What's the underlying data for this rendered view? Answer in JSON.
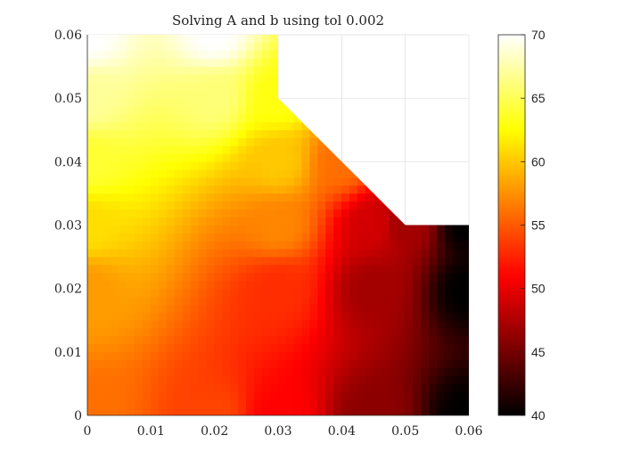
{
  "chart_data": {
    "type": "heatmap",
    "title": "Solving A and b using tol 0.002",
    "xlabel": "",
    "ylabel": "",
    "xlim": [
      0,
      0.06
    ],
    "ylim": [
      0,
      0.06
    ],
    "x_ticks": [
      "0",
      "0.01",
      "0.02",
      "0.03",
      "0.04",
      "0.05",
      "0.06"
    ],
    "y_ticks": [
      "0",
      "0.01",
      "0.02",
      "0.03",
      "0.04",
      "0.05",
      "0.06"
    ],
    "grid": true,
    "colormap": "hot",
    "colorbar": {
      "range": [
        40,
        70
      ],
      "ticks": [
        "40",
        "45",
        "50",
        "55",
        "60",
        "65",
        "70"
      ]
    },
    "domain_polygon": [
      [
        0,
        0
      ],
      [
        0.06,
        0
      ],
      [
        0.06,
        0.03
      ],
      [
        0.05,
        0.03
      ],
      [
        0.03,
        0.05
      ],
      [
        0.03,
        0.06
      ],
      [
        0,
        0.06
      ]
    ],
    "field_samples": [
      {
        "x": 0.0,
        "y": 0.06,
        "value": 70
      },
      {
        "x": 0.02,
        "y": 0.06,
        "value": 70
      },
      {
        "x": 0.0,
        "y": 0.05,
        "value": 67
      },
      {
        "x": 0.02,
        "y": 0.05,
        "value": 66
      },
      {
        "x": 0.03,
        "y": 0.05,
        "value": 63
      },
      {
        "x": 0.0,
        "y": 0.04,
        "value": 64
      },
      {
        "x": 0.03,
        "y": 0.04,
        "value": 60
      },
      {
        "x": 0.04,
        "y": 0.04,
        "value": 56
      },
      {
        "x": 0.0,
        "y": 0.03,
        "value": 61
      },
      {
        "x": 0.03,
        "y": 0.03,
        "value": 57
      },
      {
        "x": 0.045,
        "y": 0.03,
        "value": 49
      },
      {
        "x": 0.05,
        "y": 0.03,
        "value": 47
      },
      {
        "x": 0.06,
        "y": 0.03,
        "value": 40
      },
      {
        "x": 0.0,
        "y": 0.02,
        "value": 58
      },
      {
        "x": 0.03,
        "y": 0.02,
        "value": 53
      },
      {
        "x": 0.045,
        "y": 0.02,
        "value": 47
      },
      {
        "x": 0.06,
        "y": 0.02,
        "value": 40
      },
      {
        "x": 0.0,
        "y": 0.0,
        "value": 56
      },
      {
        "x": 0.02,
        "y": 0.0,
        "value": 54
      },
      {
        "x": 0.03,
        "y": 0.0,
        "value": 51
      },
      {
        "x": 0.045,
        "y": 0.0,
        "value": 46
      },
      {
        "x": 0.06,
        "y": 0.0,
        "value": 40
      }
    ]
  }
}
